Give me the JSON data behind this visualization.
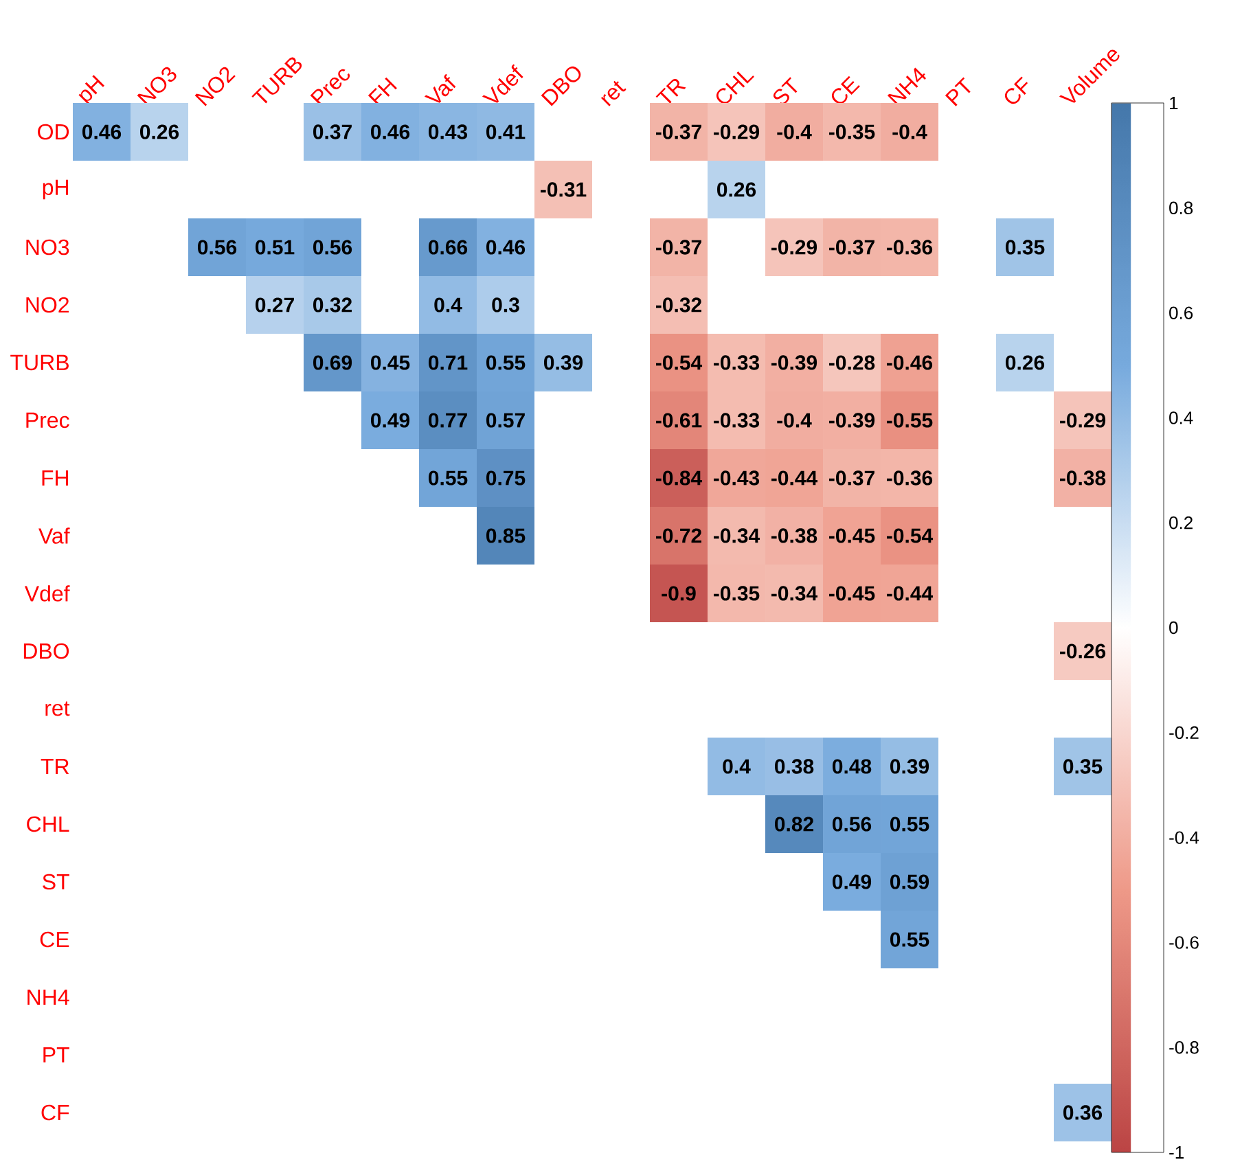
{
  "chart_data": {
    "type": "heatmap",
    "categories": [
      "pH",
      "NO3",
      "NO2",
      "TURB",
      "Prec",
      "FH",
      "Vaf",
      "Vdef",
      "DBO",
      "ret",
      "TR",
      "CHL",
      "ST",
      "CE",
      "NH4",
      "PT",
      "CF",
      "Volume"
    ],
    "y_categories": [
      "OD",
      "pH",
      "NO3",
      "NO2",
      "TURB",
      "Prec",
      "FH",
      "Vaf",
      "Vdef",
      "DBO",
      "ret",
      "TR",
      "CHL",
      "ST",
      "CE",
      "NH4",
      "PT",
      "CF"
    ],
    "cells": [
      [
        0.46,
        0.26,
        null,
        null,
        0.37,
        0.46,
        0.43,
        0.41,
        null,
        null,
        -0.37,
        -0.29,
        -0.4,
        -0.35,
        -0.4,
        null,
        null,
        null
      ],
      [
        null,
        null,
        null,
        null,
        null,
        null,
        null,
        null,
        -0.31,
        null,
        null,
        0.26,
        null,
        null,
        null,
        null,
        null,
        null
      ],
      [
        null,
        null,
        0.56,
        0.51,
        0.56,
        null,
        0.66,
        0.46,
        null,
        null,
        -0.37,
        null,
        -0.29,
        -0.37,
        -0.36,
        null,
        0.35,
        null
      ],
      [
        null,
        null,
        null,
        0.27,
        0.32,
        null,
        0.4,
        0.3,
        null,
        null,
        -0.32,
        null,
        null,
        null,
        null,
        null,
        null,
        null
      ],
      [
        null,
        null,
        null,
        null,
        0.69,
        0.45,
        0.71,
        0.55,
        0.39,
        null,
        -0.54,
        -0.33,
        -0.39,
        -0.28,
        -0.46,
        null,
        0.26,
        null
      ],
      [
        null,
        null,
        null,
        null,
        null,
        0.49,
        0.77,
        0.57,
        null,
        null,
        -0.61,
        -0.33,
        -0.4,
        -0.39,
        -0.55,
        null,
        null,
        -0.29
      ],
      [
        null,
        null,
        null,
        null,
        null,
        null,
        0.55,
        0.75,
        null,
        null,
        -0.84,
        -0.43,
        -0.44,
        -0.37,
        -0.36,
        null,
        null,
        -0.38
      ],
      [
        null,
        null,
        null,
        null,
        null,
        null,
        null,
        0.85,
        null,
        null,
        -0.72,
        -0.34,
        -0.38,
        -0.45,
        -0.54,
        null,
        null,
        null
      ],
      [
        null,
        null,
        null,
        null,
        null,
        null,
        null,
        null,
        null,
        null,
        -0.9,
        -0.35,
        -0.34,
        -0.45,
        -0.44,
        null,
        null,
        null
      ],
      [
        null,
        null,
        null,
        null,
        null,
        null,
        null,
        null,
        null,
        null,
        null,
        null,
        null,
        null,
        null,
        null,
        null,
        -0.26
      ],
      [
        null,
        null,
        null,
        null,
        null,
        null,
        null,
        null,
        null,
        null,
        null,
        null,
        null,
        null,
        null,
        null,
        null,
        null
      ],
      [
        null,
        null,
        null,
        null,
        null,
        null,
        null,
        null,
        null,
        null,
        null,
        0.4,
        0.38,
        0.48,
        0.39,
        null,
        null,
        0.35
      ],
      [
        null,
        null,
        null,
        null,
        null,
        null,
        null,
        null,
        null,
        null,
        null,
        null,
        0.82,
        0.56,
        0.55,
        null,
        null,
        null
      ],
      [
        null,
        null,
        null,
        null,
        null,
        null,
        null,
        null,
        null,
        null,
        null,
        null,
        null,
        0.49,
        0.59,
        null,
        null,
        null
      ],
      [
        null,
        null,
        null,
        null,
        null,
        null,
        null,
        null,
        null,
        null,
        null,
        null,
        null,
        null,
        0.55,
        null,
        null,
        null
      ],
      [
        null,
        null,
        null,
        null,
        null,
        null,
        null,
        null,
        null,
        null,
        null,
        null,
        null,
        null,
        null,
        null,
        null,
        null
      ],
      [
        null,
        null,
        null,
        null,
        null,
        null,
        null,
        null,
        null,
        null,
        null,
        null,
        null,
        null,
        null,
        null,
        null,
        null
      ],
      [
        null,
        null,
        null,
        null,
        null,
        null,
        null,
        null,
        null,
        null,
        null,
        null,
        null,
        null,
        null,
        null,
        null,
        0.36
      ]
    ],
    "clim": [
      -1,
      1
    ],
    "cticks": [
      -1,
      -0.8,
      -0.6,
      -0.4,
      -0.2,
      0,
      0.2,
      0.4,
      0.6,
      0.8,
      1
    ],
    "data_labels": true
  }
}
